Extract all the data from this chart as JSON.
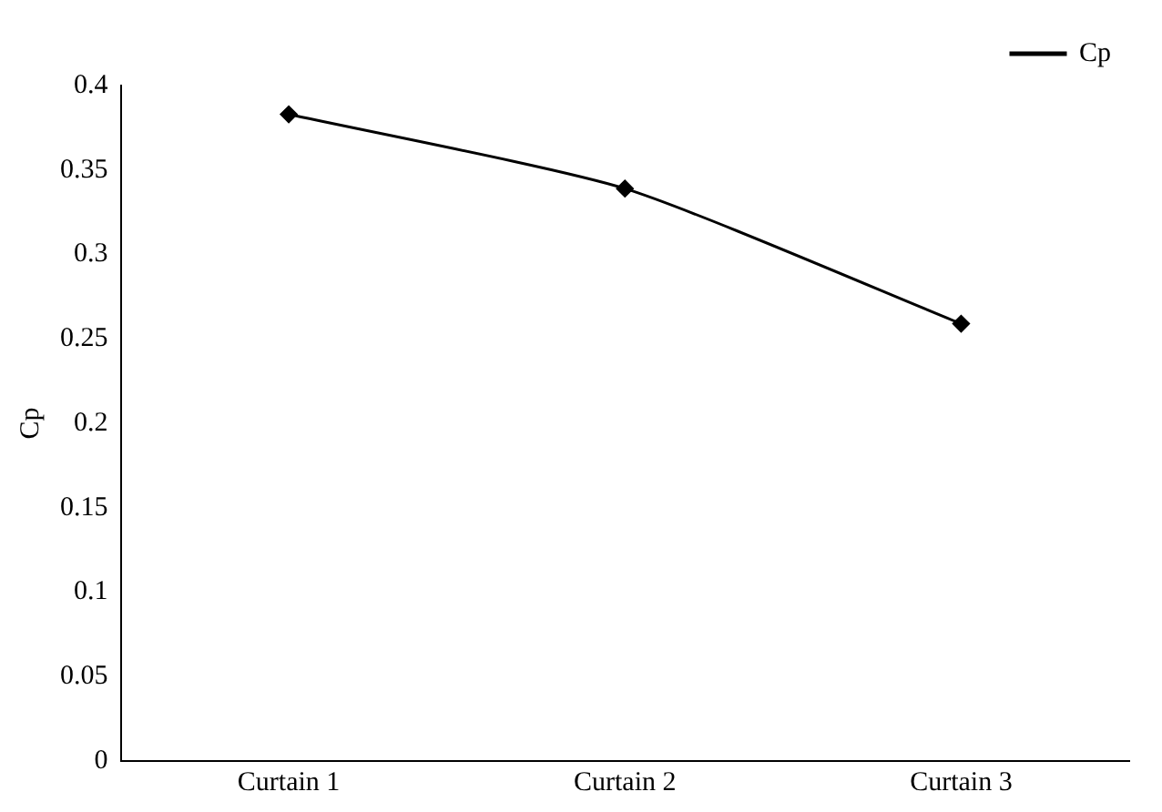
{
  "chart_data": {
    "type": "line",
    "ylabel": "Cp",
    "categories": [
      "Curtain 1",
      "Curtain 2",
      "Curtain 3"
    ],
    "series": [
      {
        "name": "Cp",
        "color": "#000000",
        "values": [
          0.383,
          0.339,
          0.259
        ]
      }
    ],
    "ylim": [
      0,
      0.4
    ],
    "yticks": [
      0,
      0.05,
      0.1,
      0.15,
      0.2,
      0.25,
      0.3,
      0.35,
      0.4
    ],
    "grid": false,
    "legend": "top right",
    "marker": "diamond",
    "line_style": "solid"
  }
}
